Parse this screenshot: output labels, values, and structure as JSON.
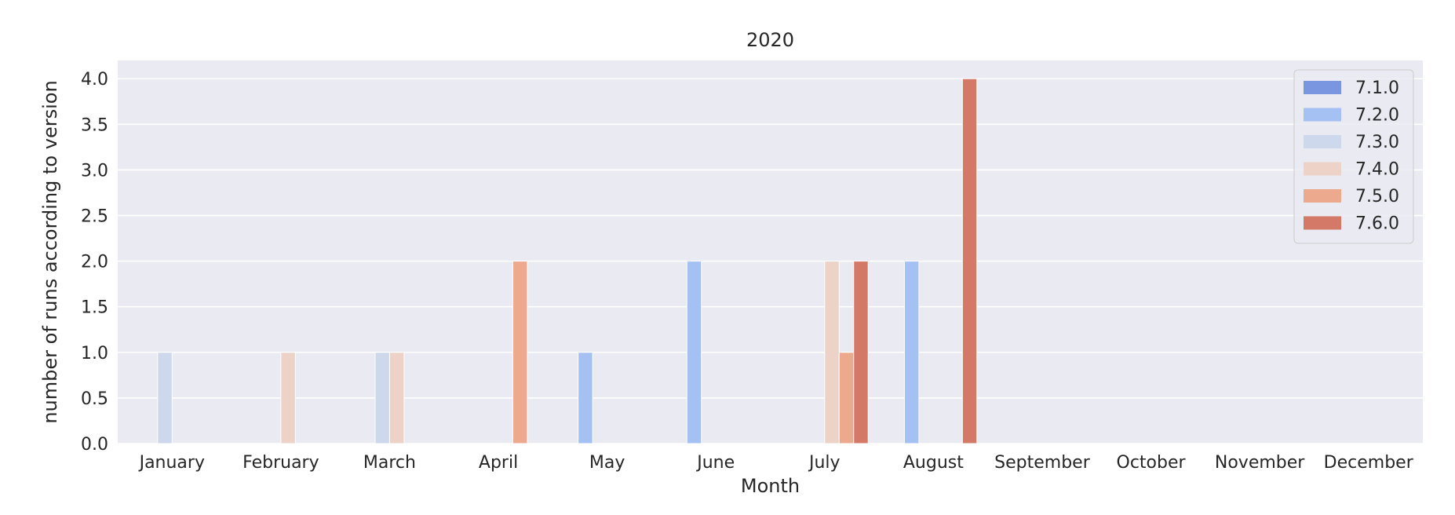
{
  "chart_data": {
    "type": "bar",
    "title": "2020",
    "xlabel": "Month",
    "ylabel": "number of runs according to version",
    "categories": [
      "January",
      "February",
      "March",
      "April",
      "May",
      "June",
      "July",
      "August",
      "September",
      "October",
      "November",
      "December"
    ],
    "ylim": [
      0,
      4.2
    ],
    "yticks": [
      "0.0",
      "0.5",
      "1.0",
      "1.5",
      "2.0",
      "2.5",
      "3.0",
      "3.5",
      "4.0"
    ],
    "grid": true,
    "legend_position": "top-right",
    "series": [
      {
        "name": "7.1.0",
        "color": "#7b96e0",
        "values": [
          0,
          0,
          0,
          0,
          0,
          0,
          0,
          0,
          0,
          0,
          0,
          0
        ]
      },
      {
        "name": "7.2.0",
        "color": "#a5c0f3",
        "values": [
          0,
          0,
          0,
          0,
          1,
          2,
          0,
          2,
          0,
          0,
          0,
          0
        ]
      },
      {
        "name": "7.3.0",
        "color": "#cdd8ec",
        "values": [
          1,
          0,
          1,
          0,
          0,
          0,
          0,
          0,
          0,
          0,
          0,
          0
        ]
      },
      {
        "name": "7.4.0",
        "color": "#ecd2c7",
        "values": [
          0,
          1,
          1,
          0,
          0,
          0,
          2,
          0,
          0,
          0,
          0,
          0
        ]
      },
      {
        "name": "7.5.0",
        "color": "#eda98d",
        "values": [
          0,
          0,
          0,
          2,
          0,
          0,
          1,
          0,
          0,
          0,
          0,
          0
        ]
      },
      {
        "name": "7.6.0",
        "color": "#d47867",
        "values": [
          0,
          0,
          0,
          0,
          0,
          0,
          2,
          4,
          0,
          0,
          0,
          0
        ]
      }
    ]
  }
}
